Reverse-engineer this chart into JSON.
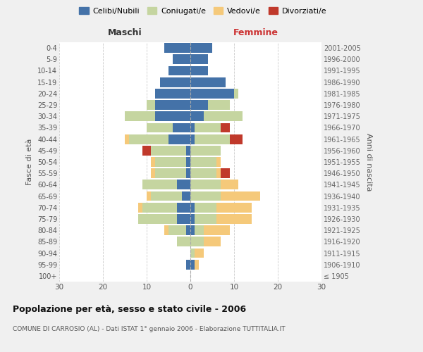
{
  "age_groups": [
    "100+",
    "95-99",
    "90-94",
    "85-89",
    "80-84",
    "75-79",
    "70-74",
    "65-69",
    "60-64",
    "55-59",
    "50-54",
    "45-49",
    "40-44",
    "35-39",
    "30-34",
    "25-29",
    "20-24",
    "15-19",
    "10-14",
    "5-9",
    "0-4"
  ],
  "birth_years": [
    "≤ 1905",
    "1906-1910",
    "1911-1915",
    "1916-1920",
    "1921-1925",
    "1926-1930",
    "1931-1935",
    "1936-1940",
    "1941-1945",
    "1946-1950",
    "1951-1955",
    "1956-1960",
    "1961-1965",
    "1966-1970",
    "1971-1975",
    "1976-1980",
    "1981-1985",
    "1986-1990",
    "1991-1995",
    "1996-2000",
    "2001-2005"
  ],
  "male": {
    "celibe": [
      0,
      1,
      0,
      0,
      1,
      3,
      3,
      2,
      3,
      1,
      1,
      1,
      5,
      4,
      8,
      8,
      8,
      7,
      5,
      4,
      6
    ],
    "coniugato": [
      0,
      0,
      0,
      3,
      4,
      9,
      8,
      7,
      8,
      7,
      7,
      8,
      9,
      6,
      7,
      2,
      0,
      0,
      0,
      0,
      0
    ],
    "vedovo": [
      0,
      0,
      0,
      0,
      1,
      0,
      1,
      1,
      0,
      1,
      1,
      0,
      1,
      0,
      0,
      0,
      0,
      0,
      0,
      0,
      0
    ],
    "divorziato": [
      0,
      0,
      0,
      0,
      0,
      0,
      0,
      0,
      0,
      0,
      0,
      2,
      0,
      0,
      0,
      0,
      0,
      0,
      0,
      0,
      0
    ]
  },
  "female": {
    "nubile": [
      0,
      1,
      0,
      0,
      1,
      1,
      1,
      0,
      0,
      0,
      0,
      0,
      1,
      1,
      3,
      4,
      10,
      8,
      4,
      4,
      5
    ],
    "coniugata": [
      0,
      0,
      1,
      3,
      2,
      5,
      5,
      7,
      7,
      6,
      6,
      7,
      8,
      6,
      9,
      5,
      1,
      0,
      0,
      0,
      0
    ],
    "vedova": [
      0,
      1,
      2,
      4,
      6,
      8,
      8,
      9,
      4,
      1,
      1,
      0,
      0,
      0,
      0,
      0,
      0,
      0,
      0,
      0,
      0
    ],
    "divorziata": [
      0,
      0,
      0,
      0,
      0,
      0,
      0,
      0,
      0,
      2,
      0,
      0,
      3,
      2,
      0,
      0,
      0,
      0,
      0,
      0,
      0
    ]
  },
  "colors": {
    "celibe": "#4472a8",
    "coniugato": "#c5d5a0",
    "vedovo": "#f5c97a",
    "divorziato": "#c0392b"
  },
  "legend_labels": [
    "Celibi/Nubili",
    "Coniugati/e",
    "Vedovi/e",
    "Divorziati/e"
  ],
  "title": "Popolazione per età, sesso e stato civile - 2006",
  "subtitle": "COMUNE DI CARROSIO (AL) - Dati ISTAT 1° gennaio 2006 - Elaborazione TUTTITALIA.IT",
  "xlabel_left": "Maschi",
  "xlabel_right": "Femmine",
  "ylabel_left": "Fasce di età",
  "ylabel_right": "Anni di nascita",
  "xlim": 30,
  "background_color": "#f0f0f0",
  "plot_background": "#ffffff"
}
